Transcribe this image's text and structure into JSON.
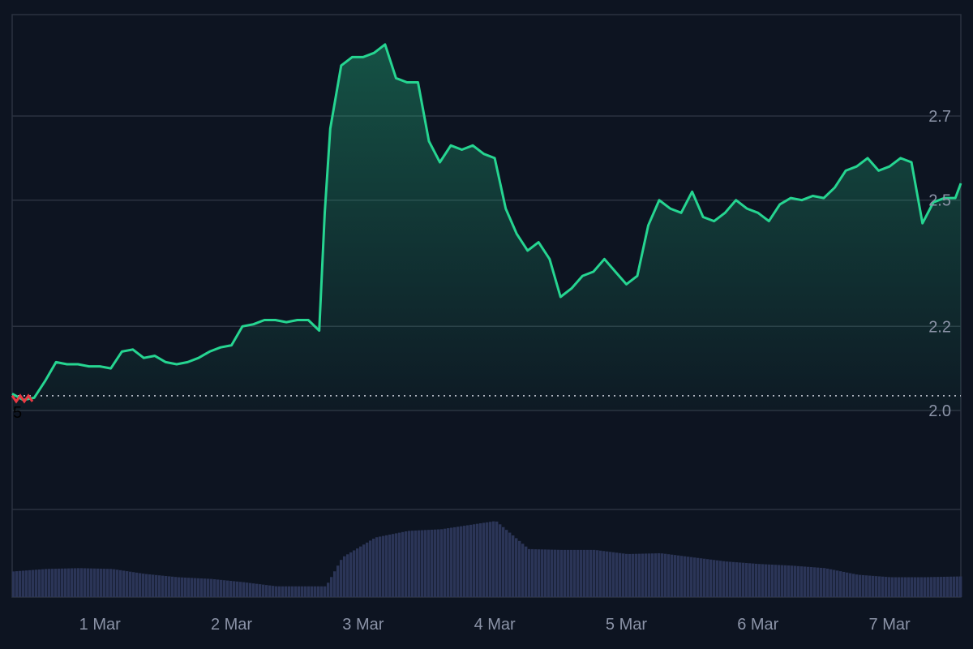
{
  "colors": {
    "background": "#0d1421",
    "grid": "#2b3240",
    "price_line": "#26d591",
    "price_line_below_open": "#ea3943",
    "volume_bar": "#2b3557",
    "reference_line": "#c8ccd6",
    "axis_label": "#8b93a7"
  },
  "chart_data": [
    {
      "type": "area",
      "title": "",
      "xlabel": "",
      "ylabel": "",
      "x_range": [
        "2025-02-28T08:00",
        "2025-03-07T13:00"
      ],
      "ylim": [
        2.0,
        2.87
      ],
      "y_ticks": [
        "2.0",
        "2.2",
        "2.5",
        "2.7"
      ],
      "y_tick_values": [
        2.0,
        2.2,
        2.5,
        2.7
      ],
      "x_ticks": [
        "1 Mar",
        "2 Mar",
        "3 Mar",
        "4 Mar",
        "5 Mar",
        "6 Mar",
        "7 Mar"
      ],
      "x_tick_dates": [
        "2025-03-01",
        "2025-03-02",
        "2025-03-03",
        "2025-03-04",
        "2025-03-05",
        "2025-03-06",
        "2025-03-07"
      ],
      "reference_value": 2.035,
      "start_label": "5",
      "grid": true,
      "legend": "none",
      "series": [
        {
          "x": [
            "2025-02-28T08:00",
            "2025-02-28T10:00",
            "2025-02-28T12:00",
            "2025-02-28T14:00",
            "2025-02-28T16:00",
            "2025-02-28T18:00",
            "2025-02-28T20:00",
            "2025-02-28T22:00",
            "2025-03-01T00:00",
            "2025-03-01T02:00",
            "2025-03-01T04:00",
            "2025-03-01T06:00",
            "2025-03-01T08:00",
            "2025-03-01T10:00",
            "2025-03-01T12:00",
            "2025-03-01T14:00",
            "2025-03-01T16:00",
            "2025-03-01T18:00",
            "2025-03-01T20:00",
            "2025-03-01T22:00",
            "2025-03-02T00:00",
            "2025-03-02T02:00",
            "2025-03-02T04:00",
            "2025-03-02T06:00",
            "2025-03-02T08:00",
            "2025-03-02T10:00",
            "2025-03-02T12:00",
            "2025-03-02T14:00",
            "2025-03-02T16:00",
            "2025-03-02T17:00",
            "2025-03-02T18:00",
            "2025-03-02T20:00",
            "2025-03-02T22:00",
            "2025-03-03T00:00",
            "2025-03-03T02:00",
            "2025-03-03T04:00",
            "2025-03-03T06:00",
            "2025-03-03T08:00",
            "2025-03-03T10:00",
            "2025-03-03T12:00",
            "2025-03-03T14:00",
            "2025-03-03T16:00",
            "2025-03-03T18:00",
            "2025-03-03T20:00",
            "2025-03-03T22:00",
            "2025-03-04T00:00",
            "2025-03-04T02:00",
            "2025-03-04T04:00",
            "2025-03-04T06:00",
            "2025-03-04T08:00",
            "2025-03-04T10:00",
            "2025-03-04T12:00",
            "2025-03-04T14:00",
            "2025-03-04T16:00",
            "2025-03-04T18:00",
            "2025-03-04T20:00",
            "2025-03-04T22:00",
            "2025-03-05T00:00",
            "2025-03-05T02:00",
            "2025-03-05T04:00",
            "2025-03-05T06:00",
            "2025-03-05T08:00",
            "2025-03-05T10:00",
            "2025-03-05T12:00",
            "2025-03-05T14:00",
            "2025-03-05T16:00",
            "2025-03-05T18:00",
            "2025-03-05T20:00",
            "2025-03-05T22:00",
            "2025-03-06T00:00",
            "2025-03-06T02:00",
            "2025-03-06T04:00",
            "2025-03-06T06:00",
            "2025-03-06T08:00",
            "2025-03-06T10:00",
            "2025-03-06T12:00",
            "2025-03-06T14:00",
            "2025-03-06T16:00",
            "2025-03-06T18:00",
            "2025-03-06T20:00",
            "2025-03-06T22:00",
            "2025-03-07T00:00",
            "2025-03-07T02:00",
            "2025-03-07T04:00",
            "2025-03-07T06:00",
            "2025-03-07T08:00",
            "2025-03-07T10:00",
            "2025-03-07T12:00",
            "2025-03-07T13:00"
          ],
          "values": [
            2.04,
            2.025,
            2.03,
            2.07,
            2.115,
            2.11,
            2.11,
            2.105,
            2.105,
            2.1,
            2.14,
            2.145,
            2.125,
            2.13,
            2.115,
            2.11,
            2.115,
            2.125,
            2.14,
            2.15,
            2.155,
            2.2,
            2.205,
            2.215,
            2.215,
            2.21,
            2.215,
            2.215,
            2.19,
            2.47,
            2.67,
            2.82,
            2.84,
            2.84,
            2.85,
            2.87,
            2.79,
            2.78,
            2.78,
            2.64,
            2.59,
            2.63,
            2.62,
            2.63,
            2.61,
            2.6,
            2.48,
            2.42,
            2.38,
            2.4,
            2.36,
            2.27,
            2.29,
            2.32,
            2.33,
            2.36,
            2.33,
            2.3,
            2.32,
            2.44,
            2.5,
            2.48,
            2.47,
            2.52,
            2.46,
            2.45,
            2.47,
            2.5,
            2.48,
            2.47,
            2.45,
            2.49,
            2.505,
            2.5,
            2.51,
            2.505,
            2.53,
            2.57,
            2.58,
            2.6,
            2.57,
            2.58,
            2.6,
            2.59,
            2.445,
            2.495,
            2.505,
            2.505,
            2.54
          ]
        }
      ]
    },
    {
      "type": "bar",
      "title": "",
      "ylabel": "",
      "xlabel": "",
      "legend": "none",
      "note": "",
      "x_range": [
        "2025-02-28T08:00",
        "2025-03-07T13:00"
      ],
      "ylim": [
        0,
        100
      ],
      "series": [
        {
          "x": [
            "2025-02-28T08:00",
            "2025-02-28T14:00",
            "2025-02-28T20:00",
            "2025-03-01T02:00",
            "2025-03-01T08:00",
            "2025-03-01T14:00",
            "2025-03-01T20:00",
            "2025-03-02T02:00",
            "2025-03-02T08:00",
            "2025-03-02T14:00",
            "2025-03-02T17:00",
            "2025-03-02T20:00",
            "2025-03-03T02:00",
            "2025-03-03T08:00",
            "2025-03-03T14:00",
            "2025-03-03T20:00",
            "2025-03-04T00:00",
            "2025-03-04T06:00",
            "2025-03-04T12:00",
            "2025-03-04T18:00",
            "2025-03-05T00:00",
            "2025-03-05T06:00",
            "2025-03-05T12:00",
            "2025-03-05T18:00",
            "2025-03-06T00:00",
            "2025-03-06T06:00",
            "2025-03-06T12:00",
            "2025-03-06T18:00",
            "2025-03-07T00:00",
            "2025-03-07T06:00",
            "2025-03-07T13:00"
          ],
          "values": [
            31,
            34,
            35,
            34,
            28,
            24,
            22,
            18,
            13,
            13,
            13,
            48,
            72,
            80,
            82,
            88,
            92,
            58,
            57,
            57,
            52,
            53,
            48,
            43,
            40,
            38,
            35,
            27,
            24,
            24,
            25
          ]
        }
      ]
    }
  ]
}
